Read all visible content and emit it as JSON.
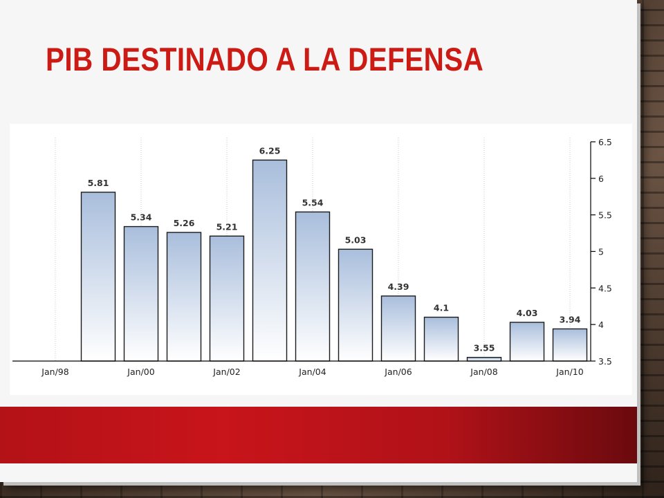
{
  "slide": {
    "title": "PIB DESTINADO A LA DEFENSA"
  },
  "colors": {
    "title": "#cc1a14",
    "band": "#c8141b",
    "bar_top": "#a9bedc",
    "bar_bottom": "#ffffff"
  },
  "chart_data": {
    "type": "bar",
    "categories": [
      "1998",
      "1999",
      "2000",
      "2001",
      "2002",
      "2003",
      "2004",
      "2005",
      "2006",
      "2007",
      "2008",
      "2009",
      "2010"
    ],
    "values": [
      null,
      5.81,
      5.34,
      5.26,
      5.21,
      6.25,
      5.54,
      5.03,
      4.39,
      4.1,
      3.55,
      4.03,
      3.94
    ],
    "data_labels": [
      "",
      "5.81",
      "5.34",
      "5.26",
      "5.21",
      "6.25",
      "5.54",
      "5.03",
      "4.39",
      "4.1",
      "3.55",
      "4.03",
      "3.94"
    ],
    "x_tick_labels": [
      "Jan/98",
      "Jan/00",
      "Jan/02",
      "Jan/04",
      "Jan/06",
      "Jan/08",
      "Jan/10"
    ],
    "x_tick_positions": [
      "1998",
      "2000",
      "2002",
      "2004",
      "2006",
      "2008",
      "2010"
    ],
    "y_tick_labels": [
      "3.5",
      "4",
      "4.5",
      "5",
      "5.5",
      "6",
      "6.5"
    ],
    "y_ticks": [
      3.5,
      4,
      4.5,
      5,
      5.5,
      6,
      6.5
    ],
    "ylim": [
      3.5,
      6.5
    ],
    "y_axis_side": "right",
    "grid": "vertical dotted",
    "title": "",
    "xlabel": "",
    "ylabel": ""
  }
}
